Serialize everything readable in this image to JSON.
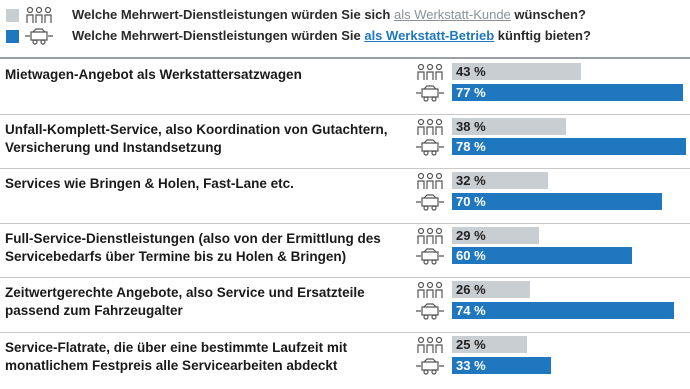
{
  "chart_data": {
    "type": "bar",
    "orientation": "horizontal",
    "categories": [
      "Mietwagen-Angebot als Werkstattersatzwagen",
      "Unfall-Komplett-Service, also Koordination von Gutachtern, Versicherung und Instandsetzung",
      "Services wie Bringen & Holen, Fast-Lane etc.",
      "Full-Service-Dienstleistungen (also von der Ermittlung des Servicebedarfs über Termine bis zu Holen & Bringen)",
      "Zeitwertgerechte Angebote, also Service und Ersatzteile passend zum Fahrzeugalter",
      "Service-Flatrate, die über eine bestimmte Laufzeit mit monatlichem Festpreis alle Servicearbeiten abdeckt"
    ],
    "series": [
      {
        "legend_before": "Welche Mehrwert-Dienstleistungen würden Sie sich",
        "name": "als Werkstatt-Kunde",
        "legend_after": "wünschen?",
        "color": "#c9ced3",
        "values": [
          43,
          38,
          32,
          29,
          26,
          25
        ],
        "value_labels": [
          "43 %",
          "38 %",
          "32 %",
          "29 %",
          "26 %",
          "25 %"
        ]
      },
      {
        "legend_before": "Welche Mehrwert-Dienstleistungen würden Sie",
        "name": "als Werkstatt-Betrieb",
        "legend_after": "künftig bieten?",
        "color": "#1f77c0",
        "values": [
          77,
          78,
          70,
          60,
          74,
          33
        ],
        "value_labels": [
          "77 %",
          "78 %",
          "70 %",
          "60 %",
          "74 %",
          "33 %"
        ]
      }
    ],
    "xlim": [
      0,
      80
    ]
  }
}
